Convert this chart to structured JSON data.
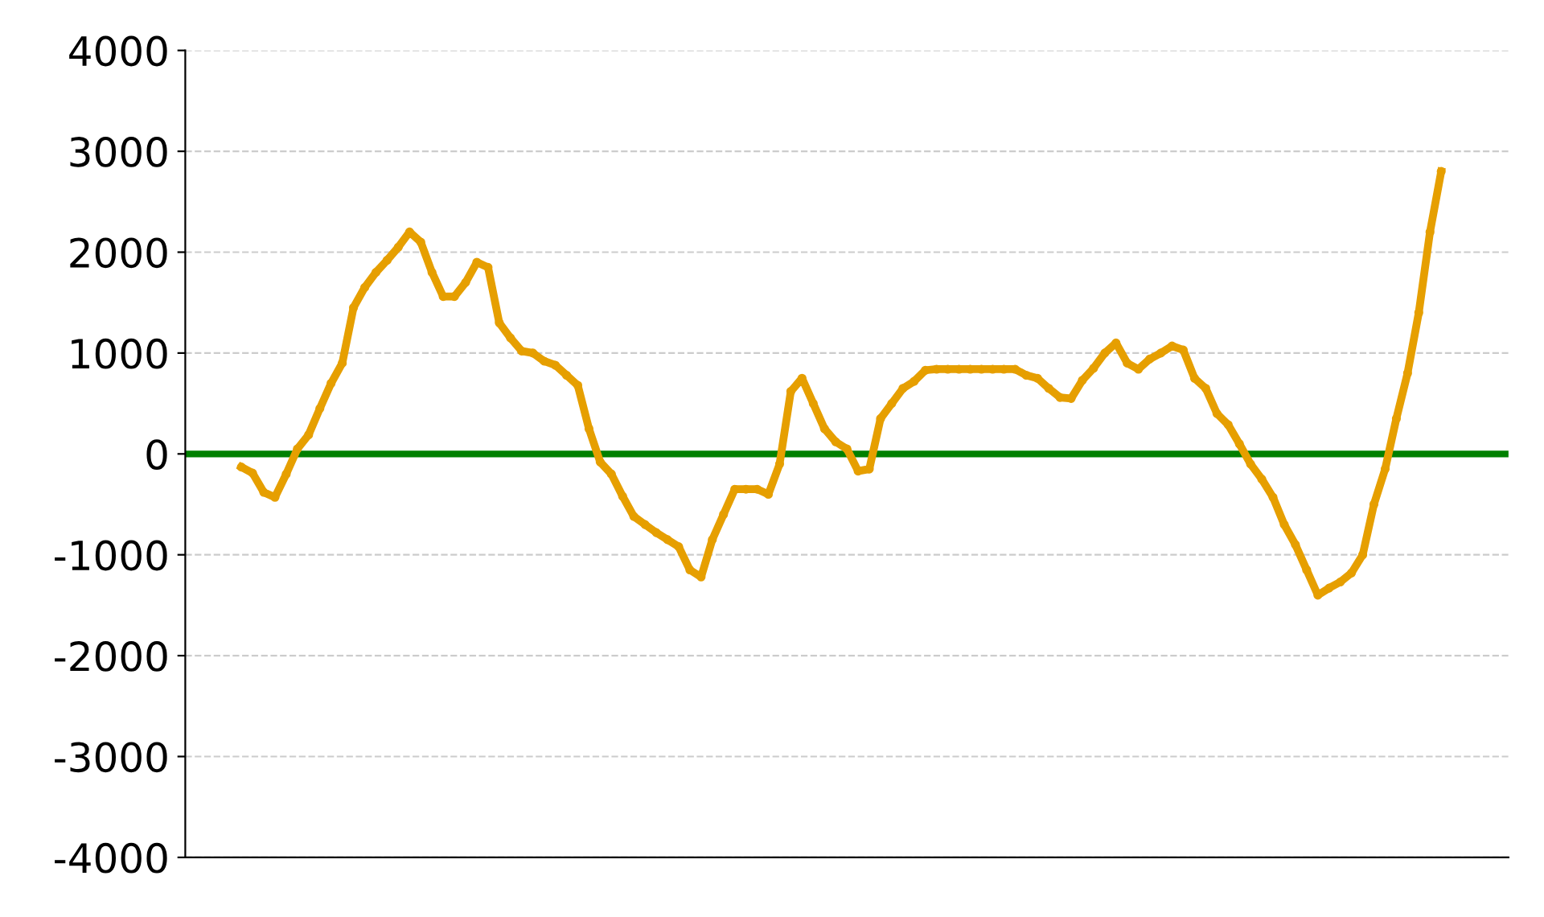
{
  "chart_data": {
    "type": "line",
    "categories": [
      null,
      null,
      null,
      null,
      null,
      null,
      null,
      null,
      null,
      null,
      null,
      null,
      null,
      null,
      null,
      null,
      null,
      null,
      null,
      null,
      null,
      null,
      null,
      null,
      null,
      null,
      null,
      null,
      null,
      null,
      null,
      null,
      null,
      null,
      null,
      null,
      null,
      null,
      null,
      null,
      null,
      null,
      null,
      null,
      null,
      null,
      null,
      null,
      null,
      null,
      null,
      null,
      null,
      null,
      null,
      null,
      null,
      null,
      null,
      null,
      null,
      null,
      null,
      null,
      null,
      null,
      null,
      null,
      null,
      null,
      null,
      null,
      null,
      null,
      null,
      null,
      null,
      null,
      null,
      null,
      null,
      null,
      null,
      null,
      null,
      null,
      null,
      null,
      null,
      null,
      null,
      null,
      null,
      null,
      null,
      null,
      null,
      null,
      null,
      null,
      null,
      null,
      null,
      null,
      null,
      null,
      null,
      null
    ],
    "series": [
      {
        "color": "#e69f00",
        "values": [
          -130,
          -190,
          -380,
          -430,
          -200,
          50,
          190,
          450,
          700,
          900,
          1450,
          1650,
          1800,
          1920,
          2050,
          2200,
          2100,
          1800,
          1560,
          1560,
          1700,
          1900,
          1850,
          1300,
          1150,
          1020,
          1000,
          920,
          880,
          780,
          680,
          250,
          -80,
          -200,
          -420,
          -620,
          -700,
          -780,
          -850,
          -920,
          -1150,
          -1220,
          -850,
          -600,
          -350,
          -350,
          -350,
          -400,
          -100,
          620,
          750,
          500,
          250,
          120,
          50,
          -170,
          -150,
          350,
          500,
          650,
          720,
          830,
          840,
          840,
          840,
          840,
          840,
          840,
          840,
          840,
          780,
          750,
          650,
          560,
          550,
          730,
          850,
          1000,
          1100,
          900,
          840,
          940,
          1000,
          1070,
          1030,
          750,
          650,
          400,
          290,
          100,
          -100,
          -250,
          -430,
          -700,
          -900,
          -1150,
          -1400,
          -1330,
          -1270,
          -1180,
          -1000,
          -500,
          -150,
          350,
          800,
          1400,
          2200,
          2800
        ]
      }
    ],
    "ylim": [
      -4000,
      4000
    ],
    "yticks": [
      -4000,
      -3000,
      -2000,
      -1000,
      0,
      1000,
      2000,
      3000,
      4000
    ],
    "grid": "y",
    "marker": "circle",
    "line_style": "solid",
    "tick_labels": "y",
    "ref_lines": [
      {
        "axis": "y",
        "value": 0,
        "color": "#008000"
      }
    ]
  }
}
